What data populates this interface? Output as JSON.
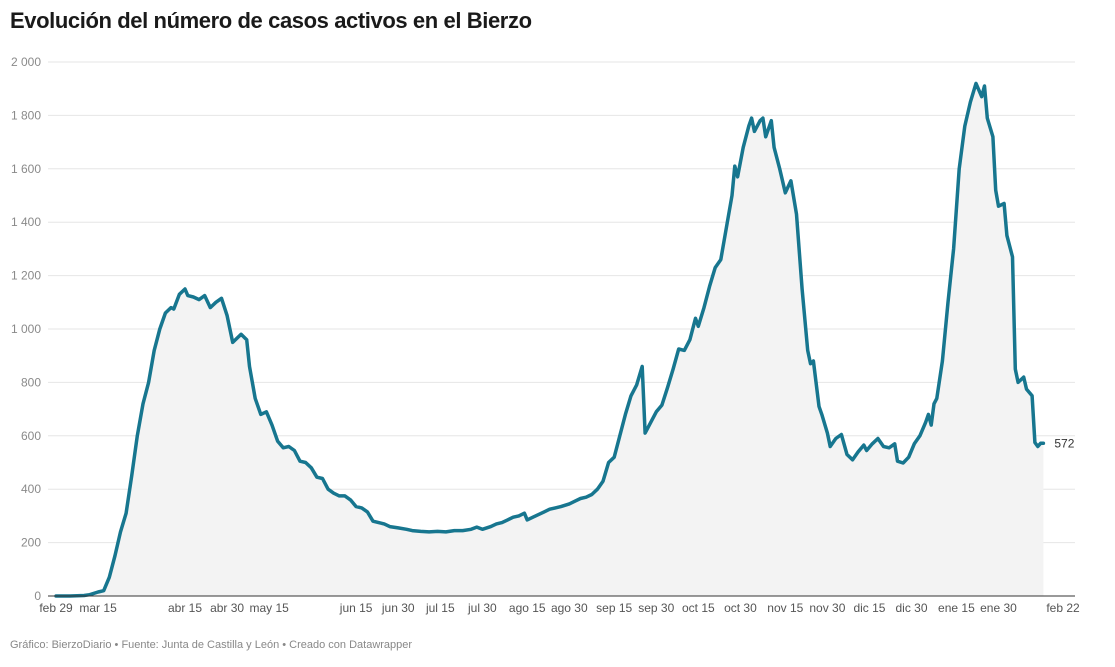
{
  "title": "Evolución del número de casos activos en el Bierzo",
  "footer": "Gráfico: BierzoDiario • Fuente: Junta de Castilla y León • Creado con Datawrapper",
  "colors": {
    "line": "#17768f",
    "area": "#f3f3f3",
    "grid": "#e6e6e6",
    "baseline": "#333333"
  },
  "chart_data": {
    "type": "area",
    "title": "Evolución del número de casos activos en el Bierzo",
    "ylim": [
      0,
      2000
    ],
    "y_ticks": [
      0,
      200,
      400,
      600,
      800,
      1000,
      1200,
      1400,
      1600,
      1800,
      2000
    ],
    "y_tick_labels": [
      "0",
      "200",
      "400",
      "600",
      "800",
      "1 000",
      "1 200",
      "1 400",
      "1 600",
      "1 800",
      "2 000"
    ],
    "x_ticks": [
      {
        "date": "2020-02-29",
        "label": "feb 29"
      },
      {
        "date": "2020-03-15",
        "label": "mar 15"
      },
      {
        "date": "2020-04-15",
        "label": "abr 15"
      },
      {
        "date": "2020-04-30",
        "label": "abr 30"
      },
      {
        "date": "2020-05-15",
        "label": "may 15"
      },
      {
        "date": "2020-06-15",
        "label": "jun 15"
      },
      {
        "date": "2020-06-30",
        "label": "jun 30"
      },
      {
        "date": "2020-07-15",
        "label": "jul 15"
      },
      {
        "date": "2020-07-30",
        "label": "jul 30"
      },
      {
        "date": "2020-08-15",
        "label": "ago 15"
      },
      {
        "date": "2020-08-30",
        "label": "ago 30"
      },
      {
        "date": "2020-09-15",
        "label": "sep 15"
      },
      {
        "date": "2020-09-30",
        "label": "sep 30"
      },
      {
        "date": "2020-10-15",
        "label": "oct 15"
      },
      {
        "date": "2020-10-30",
        "label": "oct 30"
      },
      {
        "date": "2020-11-15",
        "label": "nov 15"
      },
      {
        "date": "2020-11-30",
        "label": "nov 30"
      },
      {
        "date": "2020-12-15",
        "label": "dic 15"
      },
      {
        "date": "2020-12-30",
        "label": "dic 30"
      },
      {
        "date": "2021-01-15",
        "label": "ene 15"
      },
      {
        "date": "2021-01-30",
        "label": "ene 30"
      },
      {
        "date": "2021-02-22",
        "label": "feb 22"
      }
    ],
    "end_label": "572",
    "series": [
      {
        "points": [
          [
            "2020-02-29",
            0
          ],
          [
            "2020-03-05",
            0
          ],
          [
            "2020-03-10",
            2
          ],
          [
            "2020-03-12",
            5
          ],
          [
            "2020-03-15",
            15
          ],
          [
            "2020-03-17",
            20
          ],
          [
            "2020-03-19",
            70
          ],
          [
            "2020-03-21",
            150
          ],
          [
            "2020-03-23",
            240
          ],
          [
            "2020-03-25",
            310
          ],
          [
            "2020-03-27",
            450
          ],
          [
            "2020-03-29",
            600
          ],
          [
            "2020-03-31",
            720
          ],
          [
            "2020-04-02",
            800
          ],
          [
            "2020-04-04",
            920
          ],
          [
            "2020-04-06",
            1000
          ],
          [
            "2020-04-08",
            1060
          ],
          [
            "2020-04-10",
            1080
          ],
          [
            "2020-04-11",
            1075
          ],
          [
            "2020-04-13",
            1130
          ],
          [
            "2020-04-15",
            1150
          ],
          [
            "2020-04-16",
            1125
          ],
          [
            "2020-04-18",
            1120
          ],
          [
            "2020-04-20",
            1110
          ],
          [
            "2020-04-22",
            1125
          ],
          [
            "2020-04-24",
            1080
          ],
          [
            "2020-04-26",
            1100
          ],
          [
            "2020-04-28",
            1115
          ],
          [
            "2020-04-30",
            1050
          ],
          [
            "2020-05-02",
            950
          ],
          [
            "2020-05-05",
            980
          ],
          [
            "2020-05-07",
            960
          ],
          [
            "2020-05-08",
            860
          ],
          [
            "2020-05-10",
            740
          ],
          [
            "2020-05-12",
            680
          ],
          [
            "2020-05-14",
            690
          ],
          [
            "2020-05-16",
            640
          ],
          [
            "2020-05-18",
            580
          ],
          [
            "2020-05-20",
            555
          ],
          [
            "2020-05-22",
            560
          ],
          [
            "2020-05-24",
            545
          ],
          [
            "2020-05-26",
            505
          ],
          [
            "2020-05-28",
            500
          ],
          [
            "2020-05-30",
            480
          ],
          [
            "2020-06-01",
            445
          ],
          [
            "2020-06-03",
            440
          ],
          [
            "2020-06-05",
            400
          ],
          [
            "2020-06-07",
            385
          ],
          [
            "2020-06-09",
            375
          ],
          [
            "2020-06-11",
            375
          ],
          [
            "2020-06-13",
            360
          ],
          [
            "2020-06-15",
            335
          ],
          [
            "2020-06-17",
            330
          ],
          [
            "2020-06-19",
            315
          ],
          [
            "2020-06-21",
            280
          ],
          [
            "2020-06-23",
            275
          ],
          [
            "2020-06-25",
            270
          ],
          [
            "2020-06-27",
            260
          ],
          [
            "2020-06-30",
            255
          ],
          [
            "2020-07-03",
            250
          ],
          [
            "2020-07-05",
            245
          ],
          [
            "2020-07-08",
            242
          ],
          [
            "2020-07-11",
            240
          ],
          [
            "2020-07-14",
            242
          ],
          [
            "2020-07-17",
            240
          ],
          [
            "2020-07-20",
            245
          ],
          [
            "2020-07-23",
            245
          ],
          [
            "2020-07-26",
            250
          ],
          [
            "2020-07-28",
            258
          ],
          [
            "2020-07-30",
            250
          ],
          [
            "2020-08-02",
            260
          ],
          [
            "2020-08-04",
            270
          ],
          [
            "2020-08-06",
            275
          ],
          [
            "2020-08-08",
            285
          ],
          [
            "2020-08-10",
            295
          ],
          [
            "2020-08-12",
            300
          ],
          [
            "2020-08-14",
            310
          ],
          [
            "2020-08-15",
            285
          ],
          [
            "2020-08-17",
            295
          ],
          [
            "2020-08-19",
            305
          ],
          [
            "2020-08-21",
            315
          ],
          [
            "2020-08-23",
            325
          ],
          [
            "2020-08-25",
            330
          ],
          [
            "2020-08-27",
            335
          ],
          [
            "2020-08-30",
            345
          ],
          [
            "2020-09-01",
            355
          ],
          [
            "2020-09-03",
            365
          ],
          [
            "2020-09-05",
            370
          ],
          [
            "2020-09-07",
            380
          ],
          [
            "2020-09-09",
            400
          ],
          [
            "2020-09-11",
            430
          ],
          [
            "2020-09-13",
            500
          ],
          [
            "2020-09-15",
            520
          ],
          [
            "2020-09-17",
            600
          ],
          [
            "2020-09-19",
            680
          ],
          [
            "2020-09-21",
            750
          ],
          [
            "2020-09-23",
            790
          ],
          [
            "2020-09-25",
            860
          ],
          [
            "2020-09-26",
            610
          ],
          [
            "2020-09-28",
            650
          ],
          [
            "2020-09-30",
            690
          ],
          [
            "2020-10-02",
            715
          ],
          [
            "2020-10-04",
            780
          ],
          [
            "2020-10-06",
            850
          ],
          [
            "2020-10-08",
            925
          ],
          [
            "2020-10-10",
            920
          ],
          [
            "2020-10-12",
            960
          ],
          [
            "2020-10-14",
            1040
          ],
          [
            "2020-10-15",
            1010
          ],
          [
            "2020-10-17",
            1080
          ],
          [
            "2020-10-19",
            1160
          ],
          [
            "2020-10-21",
            1230
          ],
          [
            "2020-10-23",
            1260
          ],
          [
            "2020-10-25",
            1380
          ],
          [
            "2020-10-27",
            1500
          ],
          [
            "2020-10-28",
            1610
          ],
          [
            "2020-10-29",
            1570
          ],
          [
            "2020-10-31",
            1680
          ],
          [
            "2020-11-02",
            1760
          ],
          [
            "2020-11-03",
            1790
          ],
          [
            "2020-11-04",
            1740
          ],
          [
            "2020-11-06",
            1780
          ],
          [
            "2020-11-07",
            1790
          ],
          [
            "2020-11-08",
            1720
          ],
          [
            "2020-11-10",
            1780
          ],
          [
            "2020-11-11",
            1680
          ],
          [
            "2020-11-13",
            1600
          ],
          [
            "2020-11-15",
            1510
          ],
          [
            "2020-11-17",
            1555
          ],
          [
            "2020-11-19",
            1430
          ],
          [
            "2020-11-21",
            1150
          ],
          [
            "2020-11-23",
            920
          ],
          [
            "2020-11-24",
            870
          ],
          [
            "2020-11-25",
            880
          ],
          [
            "2020-11-27",
            710
          ],
          [
            "2020-11-28",
            680
          ],
          [
            "2020-11-30",
            610
          ],
          [
            "2020-12-01",
            560
          ],
          [
            "2020-12-03",
            590
          ],
          [
            "2020-12-05",
            605
          ],
          [
            "2020-12-07",
            530
          ],
          [
            "2020-12-09",
            510
          ],
          [
            "2020-12-11",
            540
          ],
          [
            "2020-12-13",
            565
          ],
          [
            "2020-12-14",
            545
          ],
          [
            "2020-12-16",
            570
          ],
          [
            "2020-12-18",
            590
          ],
          [
            "2020-12-20",
            560
          ],
          [
            "2020-12-22",
            555
          ],
          [
            "2020-12-24",
            570
          ],
          [
            "2020-12-25",
            505
          ],
          [
            "2020-12-27",
            498
          ],
          [
            "2020-12-29",
            520
          ],
          [
            "2020-12-31",
            570
          ],
          [
            "2021-01-02",
            600
          ],
          [
            "2021-01-04",
            650
          ],
          [
            "2021-01-05",
            680
          ],
          [
            "2021-01-06",
            640
          ],
          [
            "2021-01-07",
            720
          ],
          [
            "2021-01-08",
            740
          ],
          [
            "2021-01-10",
            880
          ],
          [
            "2021-01-12",
            1100
          ],
          [
            "2021-01-14",
            1300
          ],
          [
            "2021-01-16",
            1600
          ],
          [
            "2021-01-18",
            1760
          ],
          [
            "2021-01-20",
            1850
          ],
          [
            "2021-01-22",
            1920
          ],
          [
            "2021-01-24",
            1870
          ],
          [
            "2021-01-25",
            1910
          ],
          [
            "2021-01-26",
            1790
          ],
          [
            "2021-01-28",
            1720
          ],
          [
            "2021-01-29",
            1520
          ],
          [
            "2021-01-30",
            1460
          ],
          [
            "2021-02-01",
            1470
          ],
          [
            "2021-02-02",
            1350
          ],
          [
            "2021-02-04",
            1270
          ],
          [
            "2021-02-05",
            850
          ],
          [
            "2021-02-06",
            800
          ],
          [
            "2021-02-08",
            820
          ],
          [
            "2021-02-09",
            775
          ],
          [
            "2021-02-11",
            750
          ],
          [
            "2021-02-12",
            575
          ],
          [
            "2021-02-13",
            560
          ],
          [
            "2021-02-14",
            572
          ],
          [
            "2021-02-15",
            572
          ]
        ]
      }
    ]
  }
}
